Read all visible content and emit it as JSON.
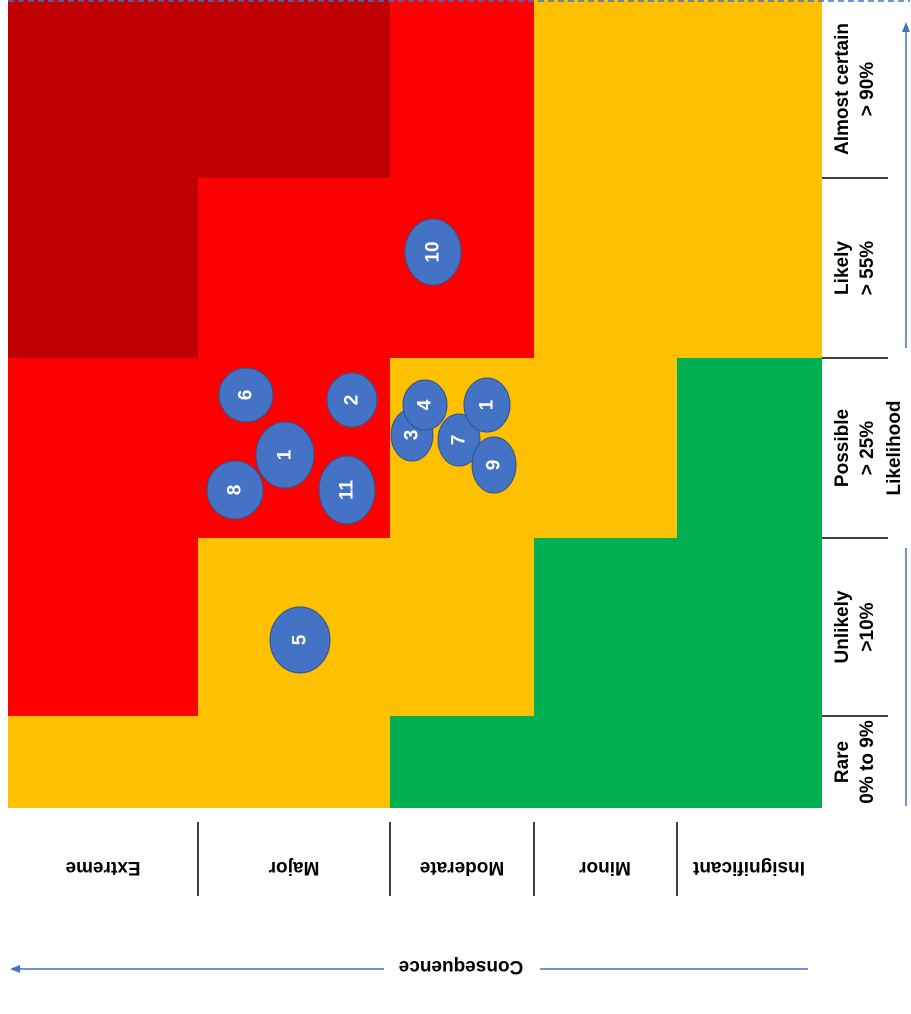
{
  "colors": {
    "extreme": "#c00000",
    "high": "#ff0000",
    "medium": "#ffc000",
    "low": "#00b050",
    "bubble": "#4472c4",
    "arrow": "#4472c4"
  },
  "likelihood_axis": {
    "title": "Likelihood",
    "levels": [
      {
        "line1": "Rare",
        "line2": "0% to 9%"
      },
      {
        "line1": "Unlikely",
        "line2": ">10%"
      },
      {
        "line1": "Possible",
        "line2": "> 25%"
      },
      {
        "line1": "Likely",
        "line2": "> 55%"
      },
      {
        "line1": "Almost certain",
        "line2": "> 90%"
      }
    ]
  },
  "consequence_axis": {
    "title": "Consequence",
    "levels": [
      "Extreme",
      "Major",
      "Moderate",
      "Minor",
      "Insignificant"
    ]
  },
  "zones": [
    {
      "level": "extreme"
    },
    {
      "level": "high"
    },
    {
      "level": "medium"
    },
    {
      "level": "low"
    }
  ],
  "risks": [
    {
      "label": "1"
    },
    {
      "label": "2"
    },
    {
      "label": "3"
    },
    {
      "label": "4"
    },
    {
      "label": "5"
    },
    {
      "label": "6"
    },
    {
      "label": "7"
    },
    {
      "label": "8"
    },
    {
      "label": "9"
    },
    {
      "label": "10"
    },
    {
      "label": "11"
    },
    {
      "label": "1"
    }
  ]
}
